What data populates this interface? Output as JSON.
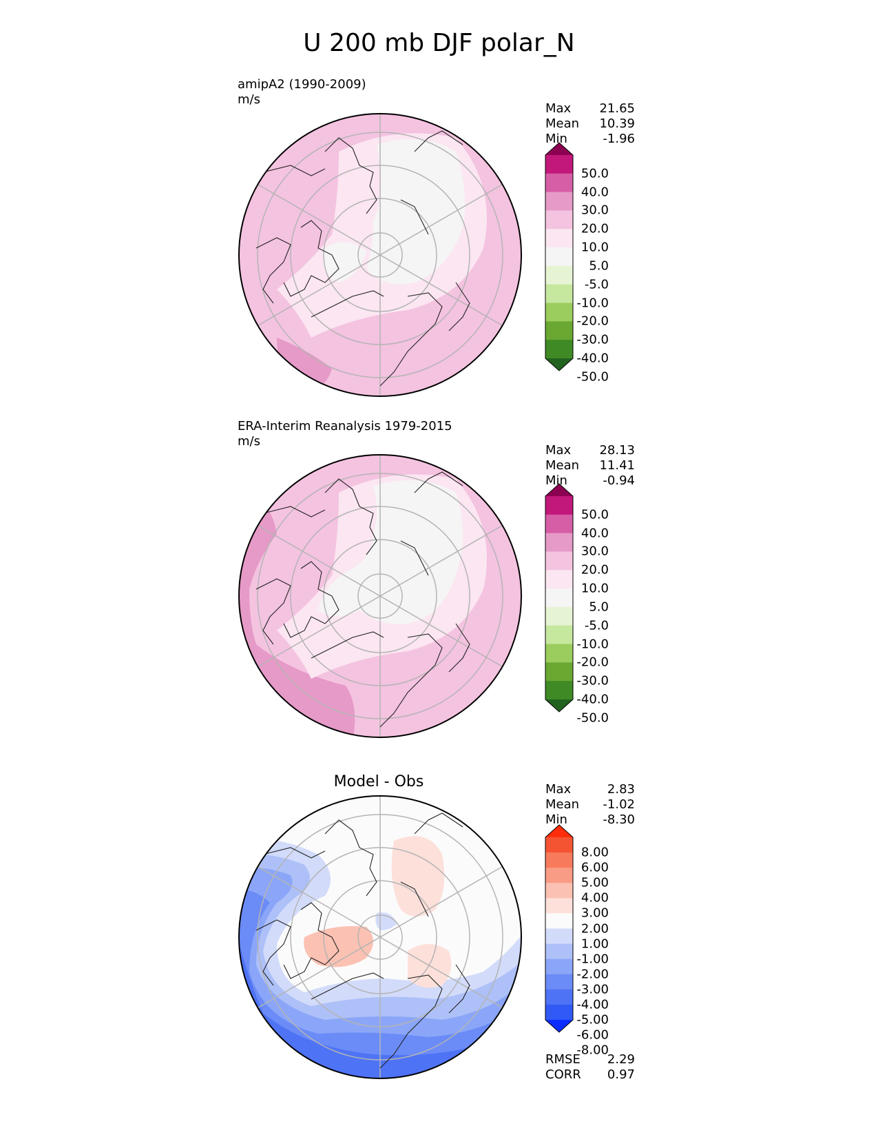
{
  "figure": {
    "title": "U 200 mb DJF polar_N"
  },
  "colormaps": {
    "fields": [
      "#22621f",
      "#3f8a25",
      "#6aa832",
      "#9bcc5e",
      "#c6e79e",
      "#e6f4d3",
      "#f5f5f5",
      "#fbe6f1",
      "#f4c3e0",
      "#e69ac8",
      "#d65ea6",
      "#c2187b",
      "#8c0052"
    ],
    "diff": [
      "#0a2cff",
      "#3159f5",
      "#4e73f5",
      "#6b8cf7",
      "#8ba6f8",
      "#adc0f8",
      "#d2dbfa",
      "#fbfbfb",
      "#fde0da",
      "#fbc1b2",
      "#f99c86",
      "#f77a5c",
      "#f55433",
      "#fe2d0c"
    ]
  },
  "panels": [
    {
      "label_line1": "amipA2 (1990-2009)",
      "label_line2": "m/s",
      "title": "",
      "stats": {
        "max_label": "Max",
        "max": "21.65",
        "mean_label": "Mean",
        "mean": "10.39",
        "min_label": "Min",
        "min": "-1.96"
      },
      "colorbar_ticks": [
        "50.0",
        "40.0",
        "30.0",
        "20.0",
        "10.0",
        "5.0",
        "-5.0",
        "-10.0",
        "-20.0",
        "-30.0",
        "-40.0",
        "-50.0"
      ]
    },
    {
      "label_line1": "ERA-Interim Reanalysis 1979-2015",
      "label_line2": "m/s",
      "title": "",
      "stats": {
        "max_label": "Max",
        "max": "28.13",
        "mean_label": "Mean",
        "mean": "11.41",
        "min_label": "Min",
        "min": "-0.94"
      },
      "colorbar_ticks": [
        "50.0",
        "40.0",
        "30.0",
        "20.0",
        "10.0",
        "5.0",
        "-5.0",
        "-10.0",
        "-20.0",
        "-30.0",
        "-40.0",
        "-50.0"
      ]
    },
    {
      "label_line1": "",
      "label_line2": "",
      "title": "Model - Obs",
      "stats": {
        "max_label": "Max",
        "max": "2.83",
        "mean_label": "Mean",
        "mean": "-1.02",
        "min_label": "Min",
        "min": "-8.30"
      },
      "colorbar_ticks": [
        "8.00",
        "6.00",
        "5.00",
        "4.00",
        "3.00",
        "2.00",
        "1.00",
        "-1.00",
        "-2.00",
        "-3.00",
        "-4.00",
        "-5.00",
        "-6.00",
        "-8.00"
      ],
      "metrics": {
        "rmse_label": "RMSE",
        "rmse": "2.29",
        "corr_label": "CORR",
        "corr": "0.97"
      }
    }
  ],
  "chart_data": [
    {
      "type": "heatmap",
      "title": "amipA2 (1990-2009)",
      "units": "m/s",
      "projection": "north-polar-stereographic",
      "field": "U 200 mb DJF",
      "levels": [
        -50,
        -40,
        -30,
        -20,
        -10,
        -5,
        5,
        10,
        20,
        30,
        40,
        50
      ],
      "extend": "both",
      "stats": {
        "max": 21.65,
        "mean": 10.39,
        "min": -1.96
      }
    },
    {
      "type": "heatmap",
      "title": "ERA-Interim Reanalysis 1979-2015",
      "units": "m/s",
      "projection": "north-polar-stereographic",
      "field": "U 200 mb DJF",
      "levels": [
        -50,
        -40,
        -30,
        -20,
        -10,
        -5,
        5,
        10,
        20,
        30,
        40,
        50
      ],
      "extend": "both",
      "stats": {
        "max": 28.13,
        "mean": 11.41,
        "min": -0.94
      }
    },
    {
      "type": "heatmap",
      "title": "Model - Obs",
      "projection": "north-polar-stereographic",
      "field": "U 200 mb DJF difference",
      "levels": [
        -8,
        -6,
        -5,
        -4,
        -3,
        -2,
        -1,
        1,
        2,
        3,
        4,
        5,
        6,
        8
      ],
      "extend": "both",
      "stats": {
        "max": 2.83,
        "mean": -1.02,
        "min": -8.3,
        "rmse": 2.29,
        "corr": 0.97
      }
    }
  ]
}
